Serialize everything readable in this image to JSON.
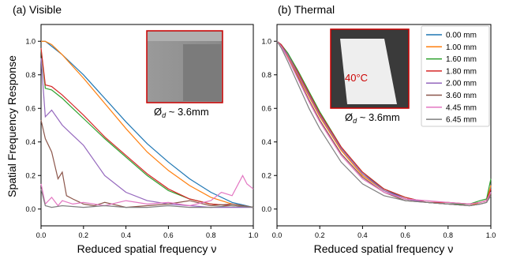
{
  "figure": {
    "ylabel": "Spatial Frequency Response",
    "colors": {
      "0.00 mm": "#1f77b4",
      "1.00 mm": "#ff7f0e",
      "1.60 mm": "#2ca02c",
      "1.80 mm": "#d62728",
      "2.00 mm": "#9467bd",
      "3.60 mm": "#8c564b",
      "4.45 mm": "#e377c2",
      "6.45 mm": "#7f7f7f"
    }
  },
  "chart_data": [
    {
      "type": "line",
      "title": "(a) Visible",
      "xlabel": "Reduced spatial frequency ν",
      "ylabel": "Spatial Frequency Response",
      "xlim": [
        0,
        1.0
      ],
      "ylim": [
        -0.1,
        1.1
      ],
      "xticks": [
        "0.0",
        "0.2",
        "0.4",
        "0.6",
        "0.8",
        "1.0"
      ],
      "yticks": [
        "0.0",
        "0.2",
        "0.4",
        "0.6",
        "0.8",
        "1.0"
      ],
      "grid": false,
      "inset": {
        "annotation": "Ød ~ 3.6mm",
        "subscript": "d",
        "label_main": "Ø",
        "label_tail": " ~ 3.6mm",
        "image": "visible-grayscale-sample"
      },
      "series": [
        {
          "name": "0.00 mm",
          "x": [
            0,
            0.02,
            0.05,
            0.1,
            0.15,
            0.2,
            0.3,
            0.4,
            0.5,
            0.6,
            0.7,
            0.8,
            0.9,
            1.0
          ],
          "y": [
            1.0,
            1.0,
            0.97,
            0.92,
            0.86,
            0.8,
            0.66,
            0.52,
            0.39,
            0.28,
            0.18,
            0.1,
            0.04,
            0.01
          ]
        },
        {
          "name": "1.00 mm",
          "x": [
            0,
            0.02,
            0.05,
            0.1,
            0.15,
            0.2,
            0.3,
            0.4,
            0.5,
            0.6,
            0.7,
            0.8,
            0.9,
            1.0
          ],
          "y": [
            1.0,
            1.0,
            0.98,
            0.92,
            0.85,
            0.78,
            0.63,
            0.48,
            0.34,
            0.23,
            0.14,
            0.07,
            0.03,
            0.01
          ]
        },
        {
          "name": "1.60 mm",
          "x": [
            0,
            0.02,
            0.05,
            0.1,
            0.15,
            0.2,
            0.3,
            0.4,
            0.5,
            0.6,
            0.7,
            0.8,
            0.9,
            1.0
          ],
          "y": [
            0.95,
            0.72,
            0.71,
            0.66,
            0.6,
            0.54,
            0.42,
            0.31,
            0.2,
            0.11,
            0.06,
            0.03,
            0.02,
            0.01
          ]
        },
        {
          "name": "1.80 mm",
          "x": [
            0,
            0.02,
            0.05,
            0.1,
            0.15,
            0.2,
            0.3,
            0.4,
            0.5,
            0.6,
            0.7,
            0.8,
            0.9,
            1.0
          ],
          "y": [
            0.96,
            0.74,
            0.73,
            0.68,
            0.62,
            0.56,
            0.43,
            0.32,
            0.21,
            0.12,
            0.06,
            0.03,
            0.02,
            0.01
          ]
        },
        {
          "name": "2.00 mm",
          "x": [
            0,
            0.02,
            0.05,
            0.1,
            0.15,
            0.2,
            0.3,
            0.4,
            0.5,
            0.6,
            0.7,
            0.8,
            0.9,
            1.0
          ],
          "y": [
            0.9,
            0.55,
            0.59,
            0.5,
            0.44,
            0.38,
            0.2,
            0.1,
            0.05,
            0.03,
            0.02,
            0.01,
            0.01,
            0.01
          ]
        },
        {
          "name": "3.60 mm",
          "x": [
            0,
            0.02,
            0.05,
            0.08,
            0.1,
            0.12,
            0.15,
            0.2,
            0.25,
            0.3,
            0.4,
            0.5,
            0.6,
            0.7,
            0.8,
            0.9,
            1.0
          ],
          "y": [
            0.53,
            0.42,
            0.34,
            0.18,
            0.22,
            0.08,
            0.06,
            0.03,
            0.02,
            0.04,
            0.01,
            0.02,
            0.03,
            0.05,
            0.02,
            0.03,
            0.01
          ]
        },
        {
          "name": "4.45 mm",
          "x": [
            0,
            0.02,
            0.05,
            0.08,
            0.1,
            0.15,
            0.2,
            0.3,
            0.4,
            0.5,
            0.6,
            0.7,
            0.8,
            0.85,
            0.9,
            0.95,
            0.97,
            1.0
          ],
          "y": [
            0.15,
            0.03,
            0.07,
            0.02,
            0.05,
            0.03,
            0.04,
            0.02,
            0.05,
            0.03,
            0.04,
            0.02,
            0.05,
            0.1,
            0.08,
            0.2,
            0.15,
            0.12
          ]
        },
        {
          "name": "6.45 mm",
          "x": [
            0,
            0.02,
            0.05,
            0.1,
            0.2,
            0.3,
            0.4,
            0.5,
            0.6,
            0.7,
            0.8,
            0.9,
            1.0
          ],
          "y": [
            0.12,
            0.02,
            0.01,
            0.02,
            0.01,
            0.02,
            0.01,
            0.01,
            0.02,
            0.01,
            0.01,
            0.02,
            0.01
          ]
        }
      ]
    },
    {
      "type": "line",
      "title": "(b) Thermal",
      "xlabel": "Reduced spatial frequency ν",
      "xlim": [
        0,
        1.0
      ],
      "ylim": [
        -0.1,
        1.1
      ],
      "xticks": [
        "0.0",
        "0.2",
        "0.4",
        "0.6",
        "0.8",
        "1.0"
      ],
      "yticks": [
        "0.0",
        "0.2",
        "0.4",
        "0.6",
        "0.8",
        "1.0"
      ],
      "grid": false,
      "legend": "top-right",
      "inset": {
        "temperature_label": "40°C",
        "label_main": "Ø",
        "subscript": "d",
        "label_tail": " ~ 3.6mm",
        "image": "thermal-sample"
      },
      "series": [
        {
          "name": "0.00 mm",
          "x": [
            0,
            0.02,
            0.05,
            0.1,
            0.15,
            0.2,
            0.3,
            0.4,
            0.5,
            0.6,
            0.7,
            0.8,
            0.9,
            0.95,
            0.98,
            1.0
          ],
          "y": [
            1.0,
            0.98,
            0.92,
            0.8,
            0.68,
            0.56,
            0.36,
            0.21,
            0.12,
            0.06,
            0.04,
            0.03,
            0.03,
            0.04,
            0.05,
            0.13
          ]
        },
        {
          "name": "1.00 mm",
          "x": [
            0,
            0.02,
            0.05,
            0.1,
            0.15,
            0.2,
            0.3,
            0.4,
            0.5,
            0.6,
            0.7,
            0.8,
            0.9,
            0.95,
            0.98,
            1.0
          ],
          "y": [
            1.0,
            0.97,
            0.91,
            0.79,
            0.67,
            0.55,
            0.35,
            0.2,
            0.11,
            0.06,
            0.04,
            0.03,
            0.02,
            0.04,
            0.05,
            0.14
          ]
        },
        {
          "name": "1.60 mm",
          "x": [
            0,
            0.02,
            0.05,
            0.1,
            0.15,
            0.2,
            0.3,
            0.4,
            0.5,
            0.6,
            0.7,
            0.8,
            0.9,
            0.95,
            0.98,
            1.0
          ],
          "y": [
            1.0,
            0.98,
            0.93,
            0.82,
            0.7,
            0.58,
            0.37,
            0.22,
            0.12,
            0.07,
            0.04,
            0.03,
            0.03,
            0.05,
            0.06,
            0.18
          ]
        },
        {
          "name": "1.80 mm",
          "x": [
            0,
            0.02,
            0.05,
            0.1,
            0.15,
            0.2,
            0.3,
            0.4,
            0.5,
            0.6,
            0.7,
            0.8,
            0.9,
            0.95,
            0.98,
            1.0
          ],
          "y": [
            1.0,
            0.98,
            0.92,
            0.81,
            0.69,
            0.57,
            0.37,
            0.22,
            0.12,
            0.07,
            0.04,
            0.04,
            0.03,
            0.04,
            0.05,
            0.12
          ]
        },
        {
          "name": "2.00 mm",
          "x": [
            0,
            0.02,
            0.05,
            0.1,
            0.15,
            0.2,
            0.3,
            0.4,
            0.5,
            0.6,
            0.7,
            0.8,
            0.9,
            0.95,
            0.98,
            1.0
          ],
          "y": [
            1.0,
            0.97,
            0.92,
            0.8,
            0.68,
            0.56,
            0.36,
            0.21,
            0.11,
            0.06,
            0.04,
            0.03,
            0.02,
            0.03,
            0.04,
            0.1
          ]
        },
        {
          "name": "3.60 mm",
          "x": [
            0,
            0.02,
            0.05,
            0.1,
            0.15,
            0.2,
            0.3,
            0.4,
            0.5,
            0.6,
            0.7,
            0.8,
            0.9,
            0.95,
            0.98,
            1.0
          ],
          "y": [
            1.0,
            0.97,
            0.9,
            0.78,
            0.65,
            0.53,
            0.33,
            0.19,
            0.1,
            0.05,
            0.04,
            0.03,
            0.02,
            0.03,
            0.04,
            0.09
          ]
        },
        {
          "name": "4.45 mm",
          "x": [
            0,
            0.02,
            0.05,
            0.1,
            0.15,
            0.2,
            0.3,
            0.4,
            0.5,
            0.6,
            0.7,
            0.8,
            0.9,
            0.95,
            0.98,
            1.0
          ],
          "y": [
            1.0,
            0.97,
            0.9,
            0.77,
            0.64,
            0.52,
            0.32,
            0.18,
            0.1,
            0.06,
            0.05,
            0.04,
            0.03,
            0.04,
            0.05,
            0.1
          ]
        },
        {
          "name": "6.45 mm",
          "x": [
            0,
            0.02,
            0.05,
            0.1,
            0.15,
            0.2,
            0.3,
            0.4,
            0.5,
            0.6,
            0.7,
            0.8,
            0.9,
            0.95,
            0.98,
            1.0
          ],
          "y": [
            1.0,
            0.96,
            0.88,
            0.74,
            0.6,
            0.48,
            0.28,
            0.15,
            0.08,
            0.05,
            0.04,
            0.03,
            0.02,
            0.03,
            0.04,
            0.08
          ]
        }
      ]
    }
  ]
}
